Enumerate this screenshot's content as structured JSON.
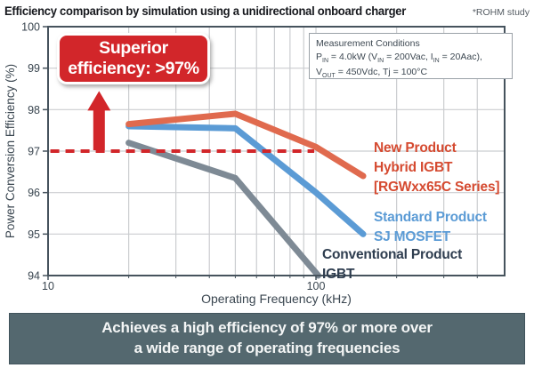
{
  "header": {
    "title": "Efficiency comparison by simulation using a unidirectional onboard charger",
    "note": "*ROHM study"
  },
  "chart_data": {
    "type": "line",
    "title": "Efficiency comparison by simulation using a unidirectional onboard charger",
    "xlabel": "Operating Frequency (kHz)",
    "ylabel": "Power Conversion Efficiency (%)",
    "x_scale": "log",
    "xlim": [
      10,
      506
    ],
    "ylim": [
      94,
      100
    ],
    "x_ticks": [
      10,
      100
    ],
    "x_gridlines": [
      20,
      30,
      40,
      50,
      60,
      70,
      80,
      90,
      100,
      200,
      300,
      400
    ],
    "y_ticks": [
      94,
      95,
      96,
      97,
      98,
      99,
      100
    ],
    "y_gridlines": [
      95,
      96,
      97,
      98,
      99
    ],
    "grid": true,
    "colors": {
      "grid": "#cbcdd0",
      "axis": "#46535d",
      "tick_text": "#3a4650",
      "accent_red": "#d2262a"
    },
    "series": [
      {
        "name": "New Product Hybrid IGBT [RGWxx65C Series]",
        "color": "#e06a4e",
        "points": [
          [
            20,
            97.65
          ],
          [
            50,
            97.9
          ],
          [
            100,
            97.1
          ],
          [
            150,
            96.4
          ]
        ]
      },
      {
        "name": "Standard Product SJ MOSFET",
        "color": "#5b9bd5",
        "points": [
          [
            20,
            97.6
          ],
          [
            50,
            97.55
          ],
          [
            100,
            96.0
          ],
          [
            150,
            95.0
          ]
        ]
      },
      {
        "name": "Conventional Product IGBT",
        "color": "#7e8a95",
        "points": [
          [
            20,
            97.2
          ],
          [
            50,
            96.35
          ],
          [
            102,
            94.0
          ]
        ]
      }
    ],
    "annotations": {
      "threshold_line": {
        "y": 97,
        "x_start_kHz": 10.2,
        "x_end_kHz": 98.5,
        "color": "#d2262a",
        "style": "dashed"
      },
      "up_arrow": {
        "x_kHz": 15.5,
        "y_from": 97,
        "y_to": 98.45,
        "color": "#d2262a"
      }
    }
  },
  "callout": {
    "line1": "Superior",
    "line2": "efficiency: >97%",
    "bg": "#d2262a"
  },
  "measurement_box": {
    "lines": [
      [
        {
          "t": "Measurement Conditions"
        }
      ],
      [
        {
          "t": "P"
        },
        {
          "sub": "IN"
        },
        {
          "t": " = 4.0kW (V"
        },
        {
          "sub": "IN"
        },
        {
          "t": " = 200Vac, I"
        },
        {
          "sub": "IN"
        },
        {
          "t": " = 20Aac),"
        }
      ],
      [
        {
          "t": "V"
        },
        {
          "sub": "OUT"
        },
        {
          "t": " = 450Vdc, Tj = 100°C"
        }
      ]
    ]
  },
  "series_labels": {
    "hybrid": {
      "lines": [
        "New Product",
        "Hybrid IGBT",
        "[RGWxx65C Series]"
      ],
      "color": "#d54a30"
    },
    "mosfet": {
      "lines": [
        "Standard Product",
        "SJ MOSFET"
      ],
      "color": "#5b9bd5"
    },
    "igbt": {
      "lines": [
        "Conventional Product",
        "IGBT"
      ],
      "color": "#2e3d4f"
    }
  },
  "banner": {
    "line1": "Achieves a high efficiency of 97% or more over",
    "line2": "a wide range of operating frequencies",
    "bg": "#54686f"
  }
}
